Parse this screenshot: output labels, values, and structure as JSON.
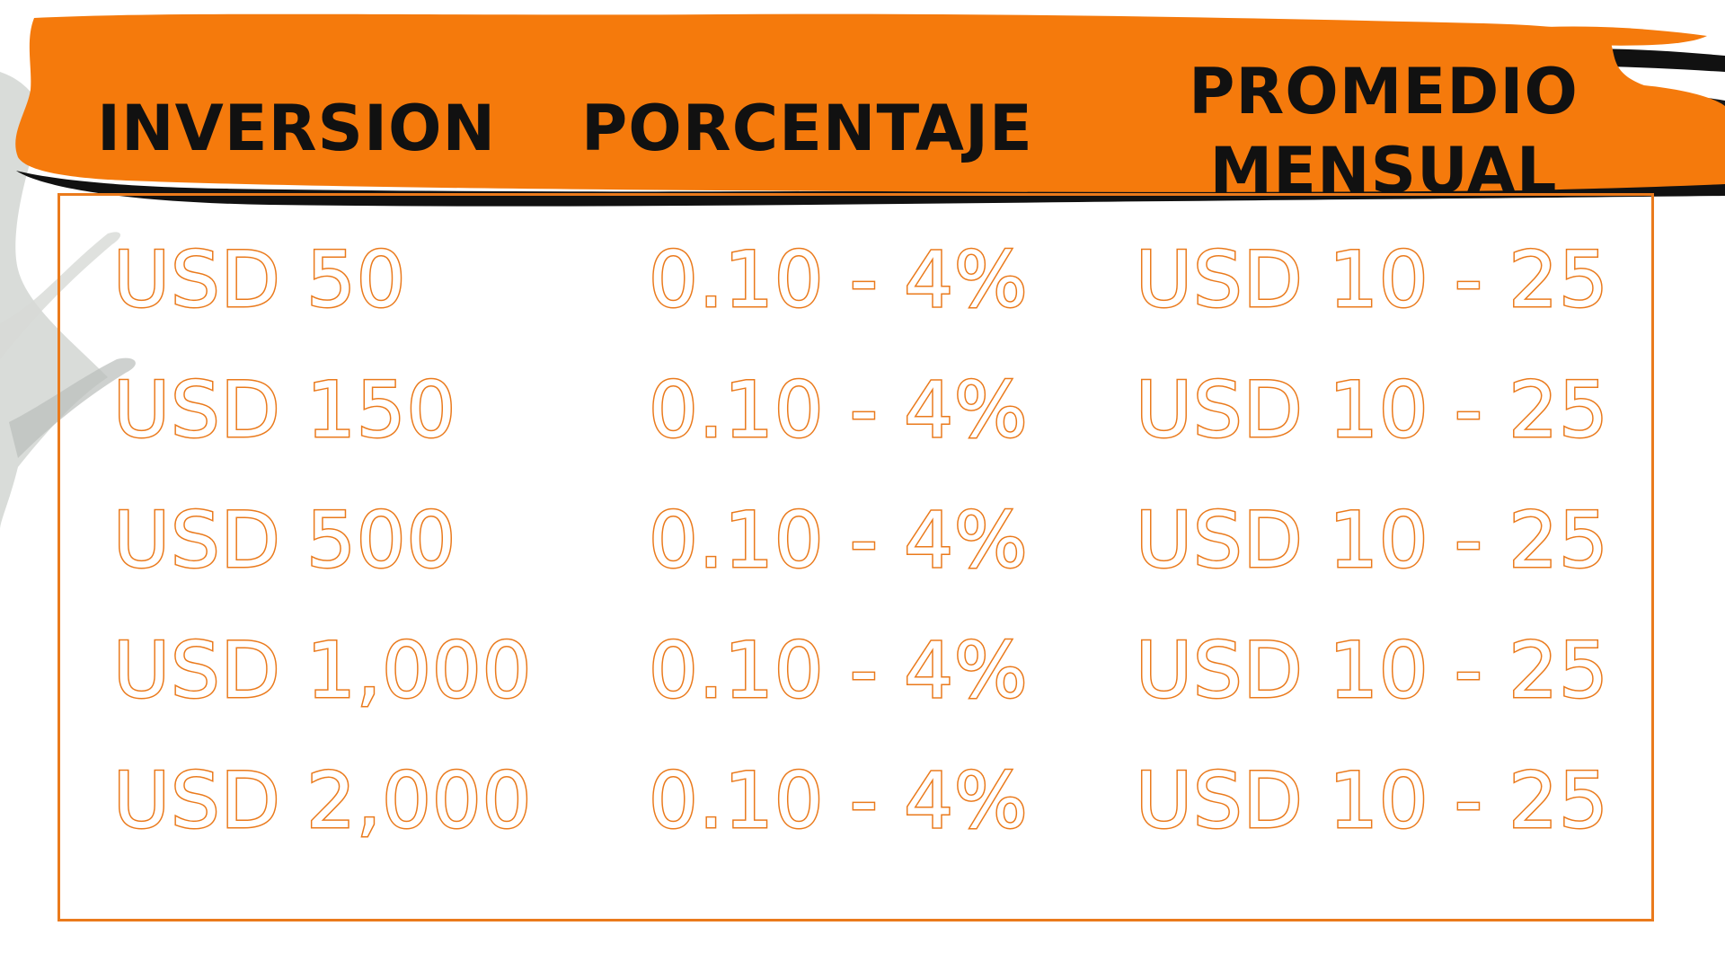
{
  "colors": {
    "accent": "#f57a0c",
    "outline": "#ea7a1c",
    "header_text": "#111111",
    "background": "#ffffff"
  },
  "table": {
    "headers": {
      "inversion": "INVERSION",
      "porcentaje": "PORCENTAJE",
      "promedio_line1": "PROMEDIO",
      "promedio_line2": "MENSUAL"
    },
    "rows": [
      {
        "inversion": "USD 50",
        "porcentaje": "0.10 - 4%",
        "promedio": "USD 10 - 25"
      },
      {
        "inversion": "USD 150",
        "porcentaje": "0.10 - 4%",
        "promedio": "USD 10 - 25"
      },
      {
        "inversion": "USD 500",
        "porcentaje": "0.10 - 4%",
        "promedio": "USD 10 - 25"
      },
      {
        "inversion": "USD 1,000",
        "porcentaje": "0.10 - 4%",
        "promedio": "USD 10 - 25"
      },
      {
        "inversion": "USD 2,000",
        "porcentaje": "0.10 - 4%",
        "promedio": "USD 10 - 25"
      }
    ]
  }
}
